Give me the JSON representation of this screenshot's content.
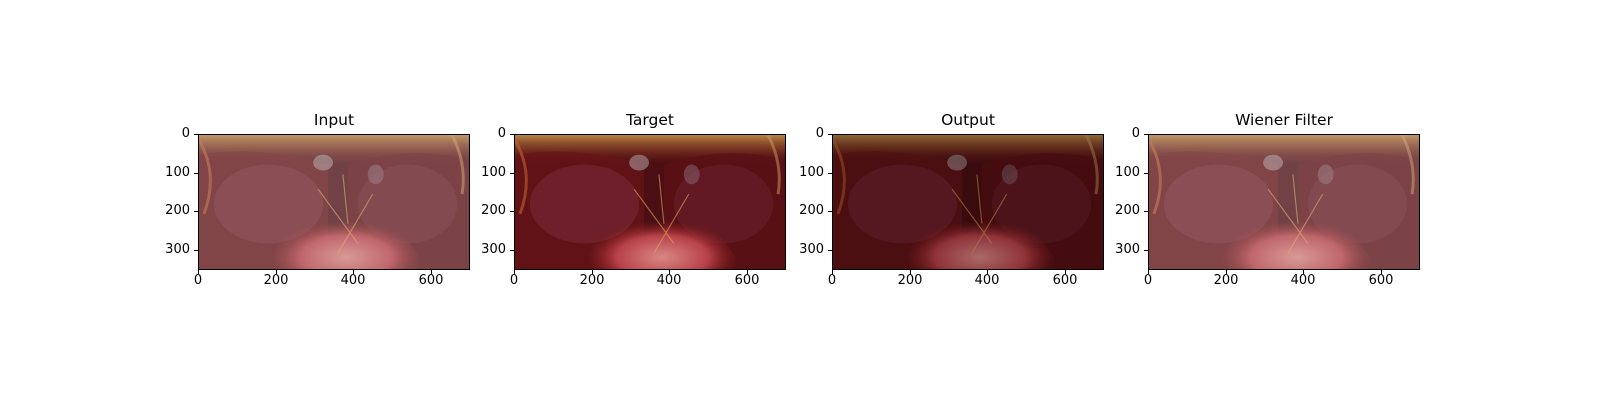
{
  "panels": [
    {
      "title": "Input",
      "tone": "hazy"
    },
    {
      "title": "Target",
      "tone": "clear"
    },
    {
      "title": "Output",
      "tone": "dark"
    },
    {
      "title": "Wiener Filter",
      "tone": "hazy"
    }
  ],
  "axes": {
    "y_ticks": [
      "0",
      "100",
      "200",
      "300"
    ],
    "x_ticks": [
      "0",
      "200",
      "400",
      "600"
    ],
    "y_max": 350,
    "x_max": 700
  },
  "colors": {
    "tissue_dark": "#4a0f12",
    "tissue_red": "#8c1e1c",
    "tissue_pink": "#d98884",
    "fat_yellow": "#c99a4a",
    "haze": "#d8c8c8"
  }
}
